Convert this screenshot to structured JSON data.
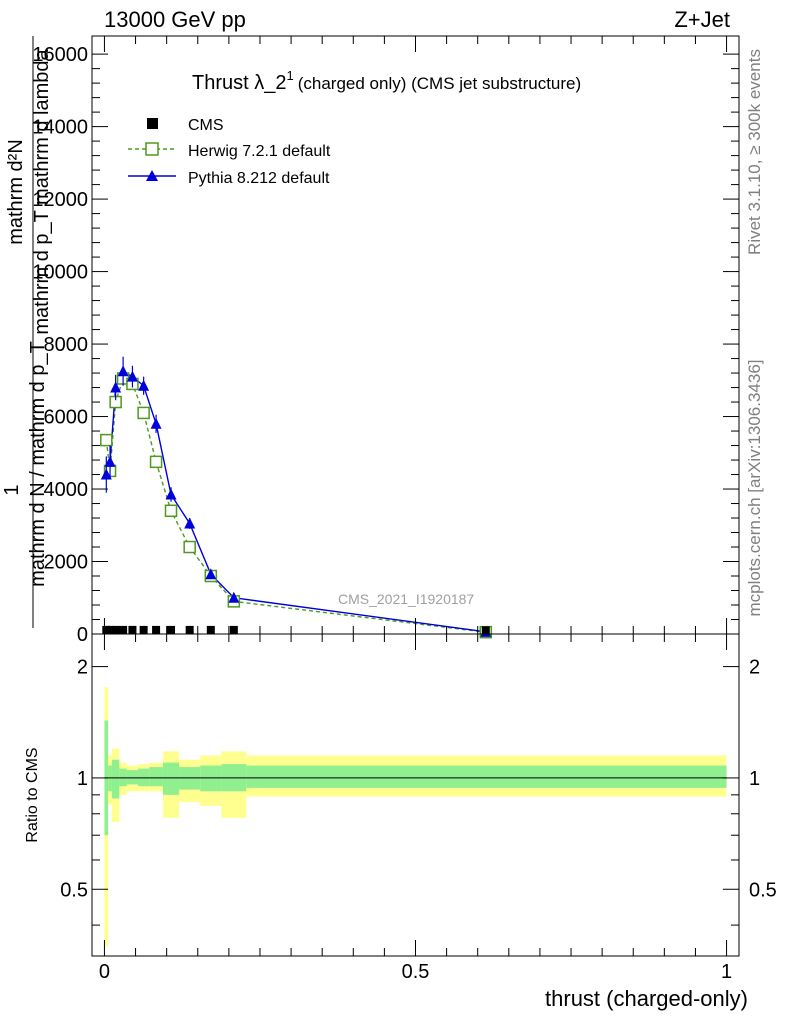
{
  "header": {
    "energy_label": "13000 GeV pp",
    "process_label": "Z+Jet"
  },
  "side_text": {
    "rivet": "Rivet 3.1.10, ≥ 300k events",
    "mcplots": "mcplots.cern.ch [arXiv:1306.3436]"
  },
  "chart_data": [
    {
      "type": "line",
      "title_main": "Thrust λ_2",
      "title_sup": "1",
      "title_rest": "(charged only) (CMS jet substructure)",
      "analysis_tag": "CMS_2021_I1920187",
      "ylabel_numerator": "mathrm d²N",
      "ylabel_numerator_inner": "mathrm d p_T mathrm d lambda",
      "ylabel_one": "1",
      "ylabel_denominator": "mathrm d N / mathrm d p_T",
      "ylabel_denominator_inner": "mathrm d N / mathrm d p_T",
      "xlim": [
        -0.02,
        1.02
      ],
      "ylim": [
        0,
        16500
      ],
      "yticks": [
        0,
        2000,
        4000,
        6000,
        8000,
        10000,
        12000,
        14000,
        16000
      ],
      "ytick_labels": [
        "0",
        "2000",
        "4000",
        "6000",
        "8000",
        "10000",
        "12000",
        "14000",
        "16000"
      ],
      "legend": {
        "position": "top-left",
        "entries": [
          {
            "name": "CMS",
            "color": "#000000",
            "marker": "square-filled"
          },
          {
            "name": "Herwig 7.2.1 default",
            "color": "#4d9a1f",
            "marker": "square-open",
            "dashed": true
          },
          {
            "name": "Pythia 8.212 default",
            "color": "#0000dd",
            "marker": "triangle"
          }
        ]
      },
      "series": [
        {
          "name": "CMS",
          "x": [
            0.003,
            0.009,
            0.018,
            0.03,
            0.045,
            0.063,
            0.083,
            0.107,
            0.137,
            0.171,
            0.208,
            0.613
          ],
          "y": [
            30,
            30,
            30,
            30,
            30,
            30,
            30,
            30,
            30,
            30,
            30,
            20
          ]
        },
        {
          "name": "Herwig 7.2.1 default",
          "x": [
            0.003,
            0.009,
            0.018,
            0.03,
            0.045,
            0.063,
            0.083,
            0.107,
            0.137,
            0.171,
            0.208,
            0.613
          ],
          "y": [
            5350,
            4500,
            6400,
            7050,
            6900,
            6100,
            4750,
            3400,
            2400,
            1600,
            900,
            50
          ],
          "err": [
            150,
            150,
            150,
            150,
            150,
            150,
            100,
            100,
            80,
            60,
            40,
            10
          ]
        },
        {
          "name": "Pythia 8.212 default",
          "x": [
            0.003,
            0.009,
            0.018,
            0.03,
            0.045,
            0.063,
            0.083,
            0.107,
            0.137,
            0.171,
            0.208,
            0.613
          ],
          "y": [
            4400,
            4750,
            6800,
            7250,
            7100,
            6850,
            5800,
            3850,
            3050,
            1650,
            1000,
            60
          ],
          "err": [
            500,
            450,
            350,
            400,
            300,
            250,
            250,
            200,
            150,
            100,
            60,
            10
          ]
        }
      ]
    },
    {
      "type": "area",
      "xlabel": "thrust (charged-only)",
      "ylabel": "Ratio to CMS",
      "xlim": [
        -0.02,
        1.02
      ],
      "ylim": [
        0.33,
        2.45
      ],
      "yticks": [
        0.5,
        1,
        2
      ],
      "ytick_labels": [
        "0.5",
        "1",
        "2"
      ],
      "xticks": [
        0,
        0.5,
        1
      ],
      "xtick_labels": [
        "0",
        "0.5",
        "1"
      ],
      "bin_edges": [
        0,
        0.006,
        0.012,
        0.024,
        0.036,
        0.054,
        0.072,
        0.094,
        0.12,
        0.154,
        0.188,
        0.228,
        1.0
      ],
      "inner_band_color": "#90f090",
      "outer_band_color": "#ffff90",
      "inner_band": {
        "low": [
          0.7,
          0.92,
          0.88,
          0.95,
          0.96,
          0.95,
          0.95,
          0.9,
          0.93,
          0.92,
          0.92,
          0.94
        ],
        "high": [
          1.43,
          1.08,
          1.12,
          1.06,
          1.05,
          1.06,
          1.07,
          1.1,
          1.07,
          1.08,
          1.09,
          1.08
        ]
      },
      "outer_band": {
        "low": [
          0.35,
          0.85,
          0.76,
          0.9,
          0.92,
          0.92,
          0.92,
          0.78,
          0.86,
          0.84,
          0.78,
          0.89
        ],
        "high": [
          1.76,
          1.15,
          1.2,
          1.1,
          1.08,
          1.09,
          1.1,
          1.18,
          1.12,
          1.15,
          1.18,
          1.15
        ]
      }
    }
  ]
}
